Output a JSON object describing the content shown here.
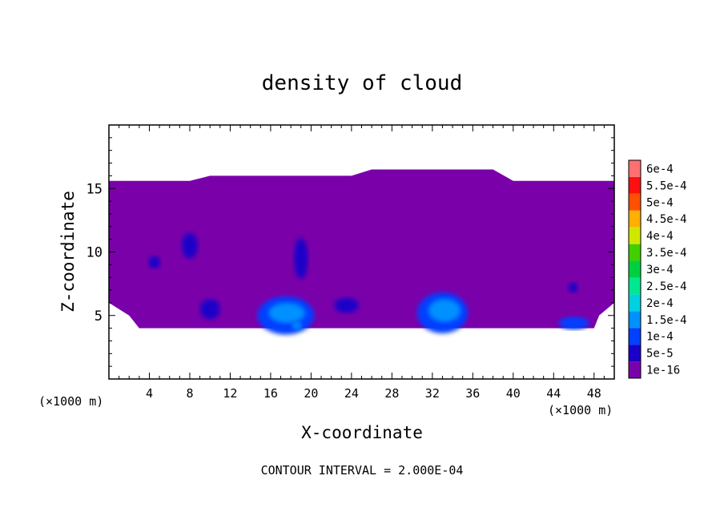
{
  "chart_data": {
    "type": "heatmap",
    "title": "density of cloud",
    "xlabel": "X-coordinate",
    "ylabel": "Z-coordinate",
    "x_unit_label": "(×1000 m)",
    "y_unit_label": "(×1000 m)",
    "footer": "CONTOUR INTERVAL = 2.000E-04",
    "xlim": [
      0,
      50
    ],
    "ylim": [
      0,
      20
    ],
    "x_ticks": [
      4,
      8,
      12,
      16,
      20,
      24,
      28,
      32,
      36,
      40,
      44,
      48
    ],
    "y_ticks": [
      5,
      10,
      15
    ],
    "grid": false,
    "legend_position": "right",
    "colorbar": [
      {
        "label": "1e-16",
        "color": "#7a00aa"
      },
      {
        "label": "5e-5",
        "color": "#1a00c8"
      },
      {
        "label": "1e-4",
        "color": "#0040ff"
      },
      {
        "label": "1.5e-4",
        "color": "#0090ff"
      },
      {
        "label": "2e-4",
        "color": "#00d0e0"
      },
      {
        "label": "2.5e-4",
        "color": "#00e890"
      },
      {
        "label": "3e-4",
        "color": "#00d040"
      },
      {
        "label": "3.5e-4",
        "color": "#40d000"
      },
      {
        "label": "4e-4",
        "color": "#d0e800"
      },
      {
        "label": "4.5e-4",
        "color": "#ffb000"
      },
      {
        "label": "5e-4",
        "color": "#ff5000"
      },
      {
        "label": "5.5e-4",
        "color": "#ff1010"
      },
      {
        "label": "6e-4",
        "color": "#ff7070"
      }
    ],
    "cloud_region": {
      "x_range": [
        0,
        48
      ],
      "z_range": [
        4,
        16
      ],
      "top_profile": [
        [
          0,
          15.6
        ],
        [
          8,
          15.6
        ],
        [
          10,
          16
        ],
        [
          24,
          16
        ],
        [
          26,
          16.5
        ],
        [
          38,
          16.5
        ],
        [
          40,
          15.6
        ],
        [
          50,
          15.6
        ]
      ],
      "bottom_profile": [
        [
          0,
          6
        ],
        [
          2,
          5
        ],
        [
          3,
          4
        ],
        [
          48,
          4
        ],
        [
          48.5,
          5
        ],
        [
          50,
          6
        ]
      ]
    },
    "cells": [
      {
        "x": 17.5,
        "z": 5.0,
        "rx": 2.8,
        "rz": 1.5,
        "level": "1e-4"
      },
      {
        "x": 17.6,
        "z": 5.2,
        "rx": 1.8,
        "rz": 0.8,
        "level": "1.5e-4"
      },
      {
        "x": 18.6,
        "z": 4.2,
        "rx": 0.5,
        "rz": 0.3,
        "level": "1.5e-4"
      },
      {
        "x": 33.0,
        "z": 5.2,
        "rx": 2.5,
        "rz": 1.6,
        "level": "1e-4"
      },
      {
        "x": 33.2,
        "z": 5.4,
        "rx": 1.6,
        "rz": 0.9,
        "level": "1.5e-4"
      },
      {
        "x": 19.0,
        "z": 9.5,
        "rx": 0.7,
        "rz": 1.6,
        "level": "5e-5"
      },
      {
        "x": 46.0,
        "z": 4.4,
        "rx": 1.5,
        "rz": 0.5,
        "level": "1e-4"
      },
      {
        "x": 45.9,
        "z": 7.2,
        "rx": 0.5,
        "rz": 0.4,
        "level": "5e-5"
      },
      {
        "x": 8.0,
        "z": 10.5,
        "rx": 0.8,
        "rz": 1.0,
        "level": "5e-5"
      },
      {
        "x": 4.5,
        "z": 9.2,
        "rx": 0.6,
        "rz": 0.5,
        "level": "5e-5"
      },
      {
        "x": 10.0,
        "z": 5.5,
        "rx": 1.0,
        "rz": 0.8,
        "level": "5e-5"
      },
      {
        "x": 23.5,
        "z": 5.8,
        "rx": 1.2,
        "rz": 0.6,
        "level": "5e-5"
      }
    ]
  }
}
